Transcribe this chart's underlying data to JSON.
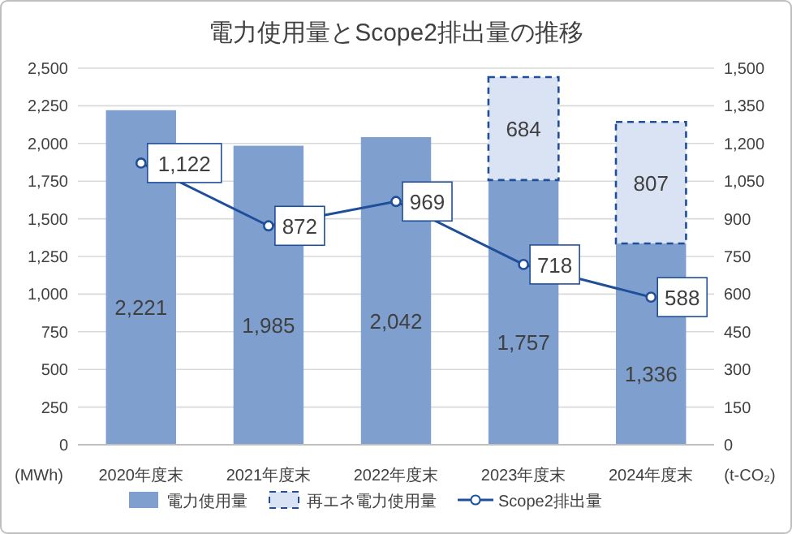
{
  "chart_data": {
    "type": "bar",
    "title": "電力使用量とScope2排出量の推移",
    "xlabel": null,
    "ylabel": "(MWh)",
    "y2label": "(t-CO₂)",
    "categories": [
      "2020年度末",
      "2021年度末",
      "2022年度末",
      "2023年度末",
      "2024年度末"
    ],
    "stacked": true,
    "series": [
      {
        "name": "電力使用量",
        "color": "#7f9fcf",
        "values": [
          2221,
          1985,
          2042,
          1757,
          1336
        ],
        "value_labels": [
          "2,221",
          "1,985",
          "2,042",
          "1,757",
          "1,336"
        ]
      },
      {
        "name": "再エネ電力使用量",
        "color": "#dae3f3",
        "line_style": "dashed",
        "values": [
          null,
          null,
          null,
          684,
          807
        ],
        "value_labels": [
          null,
          null,
          null,
          "684",
          "807"
        ]
      },
      {
        "name": "Scope2排出量",
        "type": "line",
        "axis": "y2",
        "color": "#1f4e9a",
        "marker": "circle",
        "values": [
          1122,
          872,
          969,
          718,
          588
        ],
        "value_labels": [
          "1,122",
          "872",
          "969",
          "718",
          "588"
        ]
      }
    ],
    "ylim": [
      0,
      2500
    ],
    "yticks": [
      0,
      {
        "value": 250,
        "label": "250"
      },
      {
        "value": 500,
        "label": "500"
      },
      {
        "value": 750,
        "label": "750"
      },
      {
        "value": 1000,
        "label": "1,000"
      },
      {
        "value": 1250,
        "label": "1,250"
      },
      {
        "value": 1500,
        "label": "1,500"
      },
      {
        "value": 1750,
        "label": "1,750"
      },
      {
        "value": 2000,
        "label": "2,000"
      },
      {
        "value": 2250,
        "label": "2,250"
      },
      {
        "value": 2500,
        "label": "2,500"
      }
    ],
    "y2lim": [
      0,
      1500
    ],
    "y2ticks": [
      0,
      150,
      300,
      450,
      600,
      750,
      900,
      {
        "value": 1050,
        "label": "1,050"
      },
      {
        "value": 1200,
        "label": "1,200"
      },
      {
        "value": 1350,
        "label": "1,350"
      },
      {
        "value": 1500,
        "label": "1,500"
      }
    ],
    "grid": "y",
    "legend": "bottom"
  }
}
